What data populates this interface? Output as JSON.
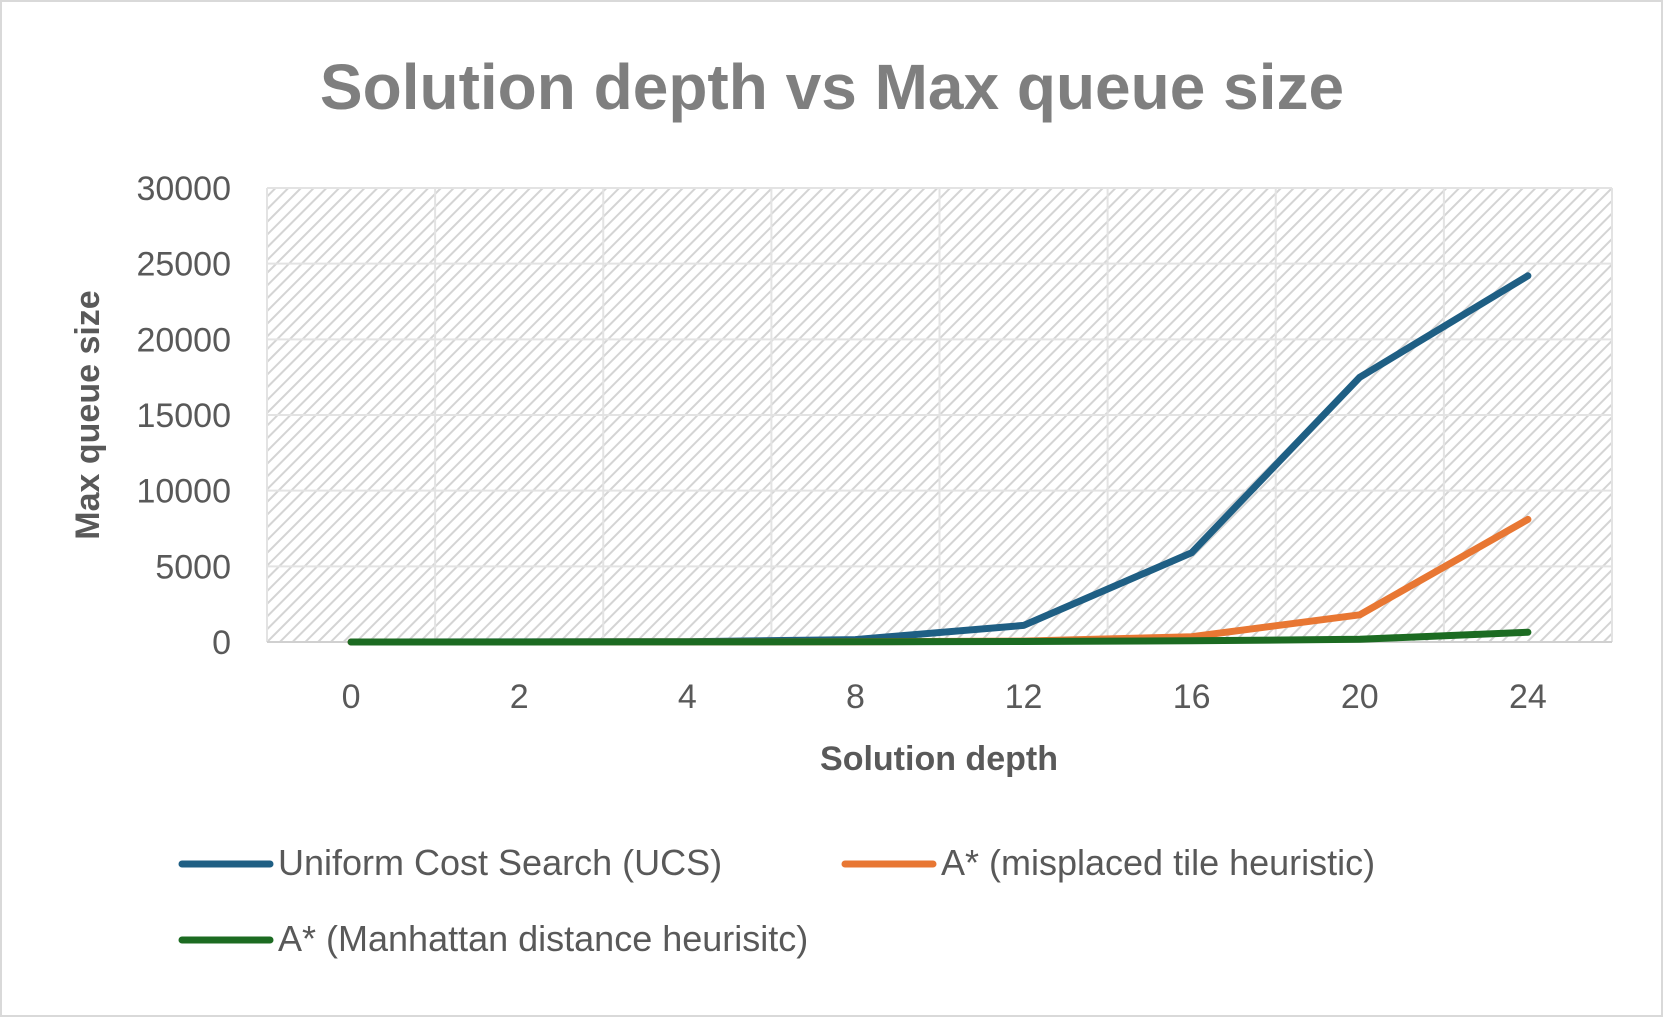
{
  "chart_data": {
    "type": "line",
    "title": "Solution depth vs Max queue size",
    "xlabel": "Solution depth",
    "ylabel": "Max queue size",
    "categories": [
      "0",
      "2",
      "4",
      "8",
      "12",
      "16",
      "20",
      "24"
    ],
    "yticks": [
      "0",
      "5000",
      "10000",
      "15000",
      "20000",
      "25000",
      "30000"
    ],
    "ylim": [
      0,
      30000
    ],
    "grid": true,
    "legend_position": "bottom",
    "series": [
      {
        "name": "Uniform Cost Search (UCS)",
        "color": "#1f5f84",
        "values": [
          1,
          5,
          20,
          160,
          1100,
          5900,
          17500,
          24200
        ]
      },
      {
        "name": "A* (misplaced tile heuristic)",
        "color": "#e87733",
        "values": [
          1,
          2,
          5,
          15,
          60,
          350,
          1800,
          8100
        ]
      },
      {
        "name": "A* (Manhattan distance heurisitc)",
        "color": "#1c6b22",
        "values": [
          1,
          2,
          4,
          10,
          30,
          80,
          180,
          650
        ]
      }
    ]
  }
}
